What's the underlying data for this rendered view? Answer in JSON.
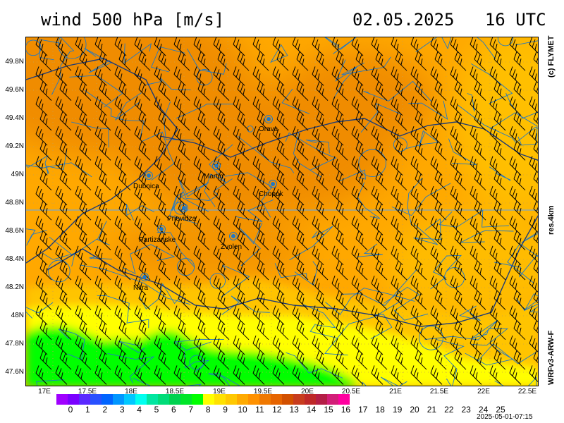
{
  "header": {
    "title": "wind 500 hPa [m/s]",
    "datetime": "02.05.2025   16 UTC"
  },
  "side_labels": {
    "copyright": "(c) FLYMET",
    "resolution": "res.4km",
    "model": "WRFv3-ARW-F"
  },
  "footer": {
    "run_time": "2025-05-01-07:15"
  },
  "map": {
    "lat_labels": [
      "49.8N",
      "49.6N",
      "49.4N",
      "49.2N",
      "49N",
      "48.8N",
      "48.6N",
      "48.4N",
      "48.2N",
      "48N",
      "47.8N",
      "47.6N"
    ],
    "lon_labels": [
      "17E",
      "17.5E",
      "18E",
      "18.5E",
      "19E",
      "19.5E",
      "20E",
      "20.5E",
      "21E",
      "21.5E",
      "22E",
      "22.5E"
    ],
    "cities": [
      {
        "name": "Orava"
      },
      {
        "name": "Dubnica"
      },
      {
        "name": "Martin"
      },
      {
        "name": "Chopok"
      },
      {
        "name": "Prievidza"
      },
      {
        "name": "Partizanske"
      },
      {
        "name": "Zvolen"
      },
      {
        "name": "Nitra"
      }
    ],
    "field_colors": {
      "dark_orange": "#f08c00",
      "orange": "#ffa800",
      "amber": "#ffc400",
      "yellow": "#ffff00",
      "green": "#00ff00"
    },
    "border_color": "#1e78c8",
    "barb_color": "#000000"
  },
  "colorbar": {
    "labels": [
      "0",
      "1",
      "2",
      "3",
      "4",
      "5",
      "6",
      "7",
      "8",
      "9",
      "10",
      "11",
      "12",
      "13",
      "14",
      "15",
      "16",
      "17",
      "18",
      "19",
      "20",
      "21",
      "22",
      "23",
      "24",
      "25"
    ],
    "colors": [
      "#a000ff",
      "#7a00ff",
      "#5a28ff",
      "#2850ff",
      "#0064ff",
      "#0096ff",
      "#00c8ff",
      "#00fff0",
      "#00e6a0",
      "#00dc78",
      "#00d250",
      "#00e628",
      "#00ff00",
      "#ffff00",
      "#ffe100",
      "#ffc800",
      "#ffaa00",
      "#ff9100",
      "#f07800",
      "#e66400",
      "#d25000",
      "#c83c1e",
      "#be2828",
      "#b41e46",
      "#d21e78",
      "#ff00a0"
    ]
  }
}
